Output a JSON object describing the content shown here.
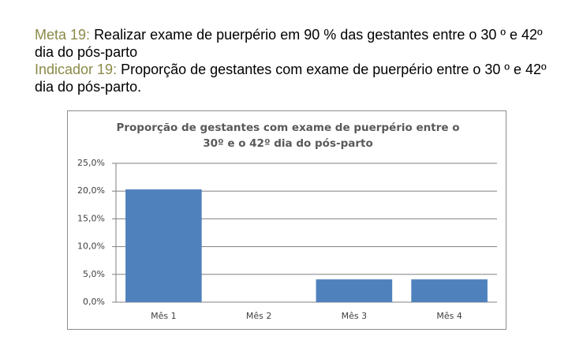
{
  "header": {
    "meta": {
      "label": "Meta 19:",
      "text": "Realizar exame de puerpério em 90 % das gestantes entre o 30 º e 42º dia do pós-parto"
    },
    "indicador": {
      "label": "Indicador 19:",
      "text": "Proporção de gestantes com exame de puerpério entre o 30 º e 42º dia do pós-parto."
    }
  },
  "chart_data": {
    "type": "bar",
    "title": "Proporção de gestantes com exame de puerpério entre o 30º e o 42º dia do pós-parto",
    "categories": [
      "Mês 1",
      "Mês 2",
      "Mês 3",
      "Mês 4"
    ],
    "values": [
      20.3,
      0,
      4.1,
      4.1
    ],
    "color": "#4f81bd",
    "ylim": [
      0,
      25
    ],
    "yticks": [
      {
        "value": 0,
        "label": "0,0%"
      },
      {
        "value": 5,
        "label": "5,0%"
      },
      {
        "value": 10,
        "label": "10,0%"
      },
      {
        "value": 15,
        "label": "15,0%"
      },
      {
        "value": 20,
        "label": "20,0%"
      },
      {
        "value": 25,
        "label": "25,0%"
      }
    ],
    "grid": true
  }
}
